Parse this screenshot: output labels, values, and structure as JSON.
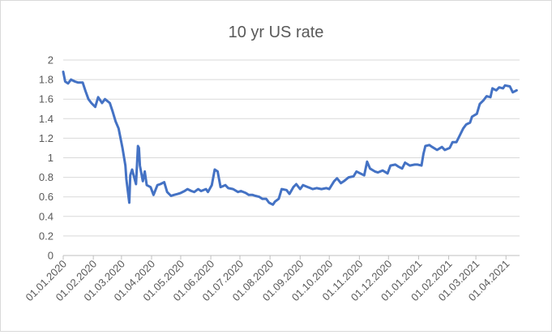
{
  "chart_data": {
    "type": "line",
    "title": "10 yr US rate",
    "xlabel": "",
    "ylabel": "",
    "ylim": [
      0,
      2
    ],
    "yticks": [
      "0",
      "0.2",
      "0.4",
      "0.6",
      "0.8",
      "1",
      "1.2",
      "1.4",
      "1.6",
      "1.8",
      "2"
    ],
    "x_tick_labels": [
      "01.01.2020",
      "01.02.2020",
      "01.03.2020",
      "01.04.2020",
      "01.05.2020",
      "01.06.2020",
      "01.07.2020",
      "01.08.2020",
      "01.09.2020",
      "01.10.2020",
      "01.11.2020",
      "01.12.2020",
      "01.01.2021",
      "01.02.2021",
      "01.03.2021",
      "01.04.2021"
    ],
    "xlim": [
      "2020-01-01",
      "2021-04-15"
    ],
    "grid": "horizontal",
    "legend": "none",
    "line_color": "#4472c4",
    "series": [
      {
        "x": [
          "2020-01-01",
          "2020-01-03",
          "2020-01-06",
          "2020-01-09",
          "2020-01-13",
          "2020-01-16",
          "2020-01-21",
          "2020-01-24",
          "2020-01-27",
          "2020-01-30",
          "2020-02-03",
          "2020-02-06",
          "2020-02-10",
          "2020-02-13",
          "2020-02-18",
          "2020-02-21",
          "2020-02-24",
          "2020-02-27",
          "2020-03-02",
          "2020-03-05",
          "2020-03-06",
          "2020-03-09",
          "2020-03-10",
          "2020-03-12",
          "2020-03-16",
          "2020-03-18",
          "2020-03-19",
          "2020-03-20",
          "2020-03-23",
          "2020-03-25",
          "2020-03-27",
          "2020-03-31",
          "2020-04-03",
          "2020-04-07",
          "2020-04-10",
          "2020-04-14",
          "2020-04-17",
          "2020-04-21",
          "2020-04-24",
          "2020-04-28",
          "2020-05-01",
          "2020-05-05",
          "2020-05-08",
          "2020-05-12",
          "2020-05-15",
          "2020-05-19",
          "2020-05-22",
          "2020-05-27",
          "2020-05-29",
          "2020-06-02",
          "2020-06-05",
          "2020-06-08",
          "2020-06-11",
          "2020-06-16",
          "2020-06-19",
          "2020-06-24",
          "2020-06-29",
          "2020-07-02",
          "2020-07-07",
          "2020-07-10",
          "2020-07-14",
          "2020-07-17",
          "2020-07-21",
          "2020-07-24",
          "2020-07-28",
          "2020-07-31",
          "2020-08-04",
          "2020-08-06",
          "2020-08-10",
          "2020-08-13",
          "2020-08-18",
          "2020-08-21",
          "2020-08-25",
          "2020-08-28",
          "2020-09-01",
          "2020-09-04",
          "2020-09-09",
          "2020-09-14",
          "2020-09-18",
          "2020-09-23",
          "2020-09-28",
          "2020-10-01",
          "2020-10-06",
          "2020-10-09",
          "2020-10-13",
          "2020-10-16",
          "2020-10-21",
          "2020-10-26",
          "2020-10-29",
          "2020-11-02",
          "2020-11-06",
          "2020-11-09",
          "2020-11-12",
          "2020-11-17",
          "2020-11-20",
          "2020-11-25",
          "2020-11-30",
          "2020-12-03",
          "2020-12-08",
          "2020-12-11",
          "2020-12-15",
          "2020-12-18",
          "2020-12-23",
          "2020-12-28",
          "2020-12-31",
          "2021-01-04",
          "2021-01-06",
          "2021-01-08",
          "2021-01-12",
          "2021-01-15",
          "2021-01-20",
          "2021-01-25",
          "2021-01-28",
          "2021-02-02",
          "2021-02-05",
          "2021-02-09",
          "2021-02-12",
          "2021-02-16",
          "2021-02-19",
          "2021-02-23",
          "2021-02-25",
          "2021-03-02",
          "2021-03-05",
          "2021-03-09",
          "2021-03-12",
          "2021-03-16",
          "2021-03-18",
          "2021-03-22",
          "2021-03-25",
          "2021-03-29",
          "2021-03-31",
          "2021-04-05",
          "2021-04-08",
          "2021-04-12"
        ],
        "values": [
          1.88,
          1.78,
          1.76,
          1.8,
          1.78,
          1.77,
          1.77,
          1.68,
          1.6,
          1.56,
          1.52,
          1.62,
          1.56,
          1.6,
          1.56,
          1.47,
          1.37,
          1.3,
          1.1,
          0.92,
          0.78,
          0.54,
          0.82,
          0.88,
          0.73,
          1.12,
          1.1,
          0.92,
          0.76,
          0.86,
          0.72,
          0.7,
          0.62,
          0.72,
          0.73,
          0.75,
          0.65,
          0.61,
          0.62,
          0.63,
          0.64,
          0.66,
          0.68,
          0.66,
          0.65,
          0.68,
          0.66,
          0.68,
          0.65,
          0.72,
          0.88,
          0.86,
          0.7,
          0.72,
          0.69,
          0.68,
          0.65,
          0.66,
          0.64,
          0.62,
          0.62,
          0.61,
          0.6,
          0.58,
          0.58,
          0.54,
          0.52,
          0.55,
          0.58,
          0.68,
          0.67,
          0.63,
          0.7,
          0.73,
          0.68,
          0.72,
          0.7,
          0.68,
          0.69,
          0.68,
          0.69,
          0.68,
          0.76,
          0.79,
          0.74,
          0.76,
          0.8,
          0.81,
          0.86,
          0.84,
          0.82,
          0.96,
          0.89,
          0.86,
          0.85,
          0.87,
          0.84,
          0.92,
          0.93,
          0.91,
          0.89,
          0.95,
          0.92,
          0.93,
          0.93,
          0.92,
          1.04,
          1.12,
          1.13,
          1.11,
          1.08,
          1.11,
          1.08,
          1.1,
          1.16,
          1.16,
          1.22,
          1.3,
          1.34,
          1.36,
          1.42,
          1.45,
          1.55,
          1.59,
          1.63,
          1.62,
          1.71,
          1.69,
          1.72,
          1.71,
          1.74,
          1.73,
          1.67,
          1.69
        ]
      }
    ]
  }
}
